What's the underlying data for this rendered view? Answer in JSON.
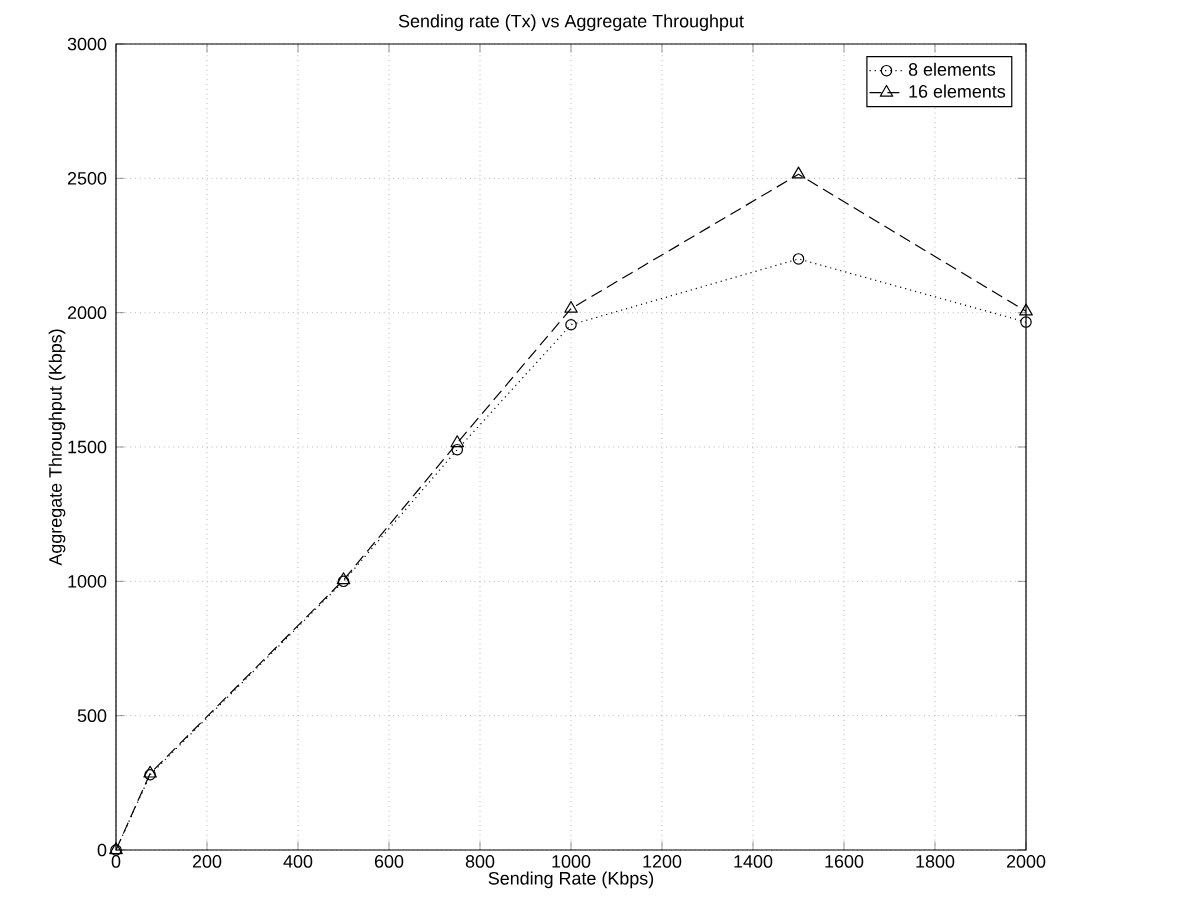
{
  "chart_data": {
    "type": "line",
    "title": "Sending rate (Tx) vs Aggregate Throughput",
    "xlabel": "Sending Rate (Kbps)",
    "ylabel": "Aggregate Throughput (Kbps)",
    "xlim": [
      0,
      2000
    ],
    "ylim": [
      0,
      3000
    ],
    "xticks": [
      0,
      200,
      400,
      600,
      800,
      1000,
      1200,
      1400,
      1600,
      1800,
      2000
    ],
    "yticks": [
      0,
      500,
      1000,
      1500,
      2000,
      2500,
      3000
    ],
    "grid": true,
    "legend": "top right",
    "series": [
      {
        "name": "8 elements",
        "color": "#000000",
        "marker": "circle",
        "line_style": "dotted",
        "x": [
          0,
          75,
          500,
          750,
          1000,
          1500,
          2000
        ],
        "values": [
          0,
          280,
          1000,
          1490,
          1955,
          2200,
          1965
        ]
      },
      {
        "name": "16 elements",
        "color": "#000000",
        "marker": "triangle",
        "line_style": "dashed",
        "x": [
          0,
          75,
          500,
          750,
          1000,
          1500,
          2000
        ],
        "values": [
          0,
          285,
          1005,
          1515,
          2015,
          2515,
          2005
        ]
      }
    ]
  }
}
